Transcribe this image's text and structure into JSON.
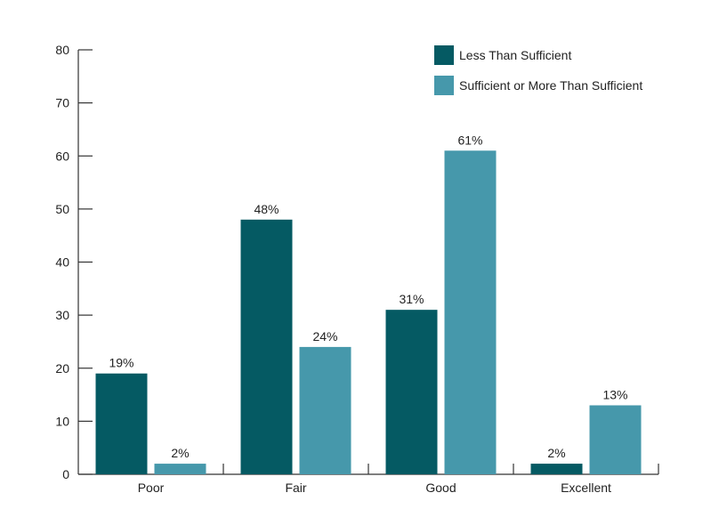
{
  "chart_data": {
    "type": "bar",
    "title": "",
    "xlabel": "",
    "ylabel": "",
    "categories": [
      "Poor",
      "Fair",
      "Good",
      "Excellent"
    ],
    "series": [
      {
        "name": "Less Than Sufficient",
        "values": [
          19,
          48,
          31,
          2
        ],
        "labels": [
          "19%",
          "48%",
          "31%",
          "2%"
        ],
        "color": "#055a63"
      },
      {
        "name": "Sufficient or More Than Sufficient",
        "values": [
          2,
          24,
          61,
          13
        ],
        "labels": [
          "2%",
          "24%",
          "61%",
          "13%"
        ],
        "color": "#4698ab"
      }
    ],
    "ylim": [
      0,
      80
    ],
    "yticks": [
      0,
      10,
      20,
      30,
      40,
      50,
      60,
      70,
      80
    ],
    "grid": false,
    "legend_position": "top-right"
  }
}
